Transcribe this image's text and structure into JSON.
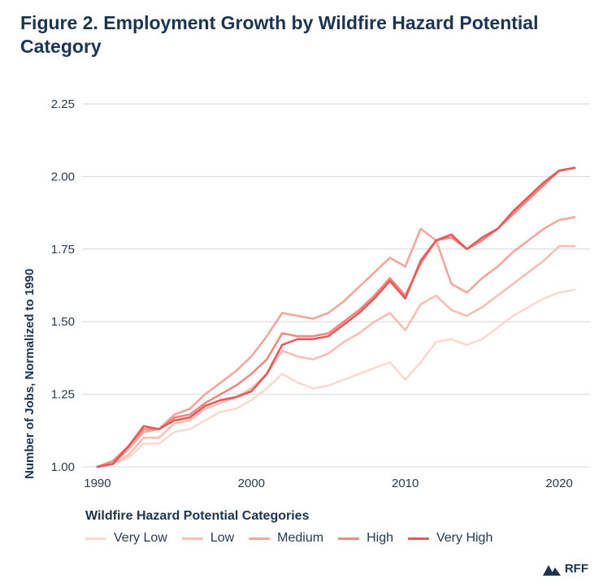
{
  "figure": {
    "title": "Figure 2.  Employment Growth by Wildfire Hazard Potential Category",
    "brand": "RFF"
  },
  "chart_data": {
    "type": "line",
    "title": "Employment Growth by Wildfire Hazard Potential Category",
    "xlabel": "",
    "ylabel": "Number of Jobs, Normalized to 1990",
    "xlim": [
      1989,
      2022
    ],
    "ylim": [
      1.0,
      2.25
    ],
    "xticks": [
      1990,
      2000,
      2010,
      2020
    ],
    "yticks": [
      1.0,
      1.25,
      1.5,
      1.75,
      2.0,
      2.25
    ],
    "ytick_labels": [
      "1.00",
      "1.25",
      "1.50",
      "1.75",
      "2.00",
      "2.25"
    ],
    "grid": "horizontal",
    "legend_title": "Wildfire Hazard Potential Categories",
    "legend_position": "bottom",
    "x": [
      1990,
      1991,
      1992,
      1993,
      1994,
      1995,
      1996,
      1997,
      1998,
      1999,
      2000,
      2001,
      2002,
      2003,
      2004,
      2005,
      2006,
      2007,
      2008,
      2009,
      2010,
      2011,
      2012,
      2013,
      2014,
      2015,
      2016,
      2017,
      2018,
      2019,
      2020,
      2021
    ],
    "series": [
      {
        "name": "Very Low",
        "color": "#f9d9d2",
        "values": [
          1.0,
          1.01,
          1.03,
          1.08,
          1.08,
          1.12,
          1.13,
          1.16,
          1.19,
          1.2,
          1.23,
          1.27,
          1.32,
          1.29,
          1.27,
          1.28,
          1.3,
          1.32,
          1.34,
          1.36,
          1.3,
          1.36,
          1.43,
          1.44,
          1.42,
          1.44,
          1.48,
          1.52,
          1.55,
          1.58,
          1.6,
          1.61
        ]
      },
      {
        "name": "Low",
        "color": "#f5bfb5",
        "values": [
          1.0,
          1.01,
          1.04,
          1.1,
          1.1,
          1.15,
          1.16,
          1.2,
          1.22,
          1.24,
          1.27,
          1.32,
          1.4,
          1.38,
          1.37,
          1.39,
          1.43,
          1.46,
          1.5,
          1.53,
          1.47,
          1.56,
          1.59,
          1.54,
          1.52,
          1.55,
          1.59,
          1.63,
          1.67,
          1.71,
          1.76,
          1.76
        ]
      },
      {
        "name": "Medium",
        "color": "#f0a79c",
        "values": [
          1.0,
          1.01,
          1.06,
          1.12,
          1.13,
          1.18,
          1.2,
          1.25,
          1.29,
          1.33,
          1.38,
          1.45,
          1.53,
          1.52,
          1.51,
          1.53,
          1.57,
          1.62,
          1.67,
          1.72,
          1.69,
          1.82,
          1.78,
          1.63,
          1.6,
          1.65,
          1.69,
          1.74,
          1.78,
          1.82,
          1.85,
          1.86
        ]
      },
      {
        "name": "High",
        "color": "#ec8a81",
        "values": [
          1.0,
          1.02,
          1.07,
          1.13,
          1.13,
          1.17,
          1.18,
          1.22,
          1.25,
          1.28,
          1.32,
          1.37,
          1.46,
          1.45,
          1.45,
          1.46,
          1.5,
          1.54,
          1.59,
          1.65,
          1.59,
          1.7,
          1.78,
          1.79,
          1.75,
          1.78,
          1.82,
          1.87,
          1.92,
          1.97,
          2.02,
          2.03
        ]
      },
      {
        "name": "Very High",
        "color": "#e35a5a",
        "values": [
          1.0,
          1.01,
          1.07,
          1.14,
          1.13,
          1.16,
          1.17,
          1.21,
          1.23,
          1.24,
          1.26,
          1.32,
          1.42,
          1.44,
          1.44,
          1.45,
          1.49,
          1.53,
          1.58,
          1.64,
          1.58,
          1.71,
          1.78,
          1.8,
          1.75,
          1.79,
          1.82,
          1.88,
          1.93,
          1.98,
          2.02,
          2.03
        ]
      }
    ]
  }
}
